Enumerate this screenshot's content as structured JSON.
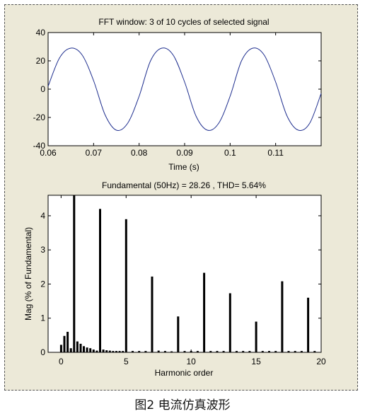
{
  "caption": "图2 电流仿真波形",
  "colors": {
    "panel_background": "#ece9d8",
    "plot_background": "#ffffff",
    "waveform": "#1f2f8f",
    "bars": "#000000"
  },
  "chart_data": [
    {
      "type": "line",
      "title": "FFT window: 3 of 10 cycles of selected signal",
      "xlabel": "Time (s)",
      "ylabel": "",
      "xlim": [
        0.06,
        0.12
      ],
      "ylim": [
        -40,
        40
      ],
      "x_ticks": [
        "0.06",
        "0.07",
        "0.08",
        "0.09",
        "0.1",
        "0.11"
      ],
      "y_ticks": [
        "40",
        "20",
        "0",
        "-20",
        "-40"
      ],
      "series": [
        {
          "frequency_hz": 50,
          "fundamental_amplitude": 28.26,
          "thd_percent": 5.64,
          "x": [
            0.06,
            0.0625,
            0.065,
            0.0675,
            0.07,
            0.0725,
            0.075,
            0.0775,
            0.08,
            0.0825,
            0.085,
            0.0875,
            0.09,
            0.0925,
            0.095,
            0.0975,
            0.1,
            0.1025,
            0.105,
            0.1075,
            0.11,
            0.1125,
            0.115,
            0.1175,
            0.12
          ],
          "y": [
            2,
            22,
            29,
            24,
            6,
            -18,
            -29,
            -24,
            -5,
            20,
            29,
            24,
            5,
            -19,
            -29,
            -24,
            -5,
            20,
            29,
            24,
            5,
            -19,
            -29,
            -24,
            -3
          ]
        }
      ]
    },
    {
      "type": "bar",
      "title": "Fundamental (50Hz) = 28.26 , THD= 5.64%",
      "xlabel": "Harmonic order",
      "ylabel": "Mag (% of Fundamental)",
      "xlim": [
        -1,
        20
      ],
      "ylim": [
        0,
        4.6
      ],
      "x_ticks": [
        "0",
        "5",
        "10",
        "15",
        "20"
      ],
      "y_ticks": [
        "0",
        "1",
        "2",
        "3",
        "4"
      ],
      "series": [
        {
          "x": [
            0,
            0.25,
            0.5,
            0.75,
            1,
            1.25,
            1.5,
            1.75,
            2,
            2.25,
            2.5,
            2.75,
            3,
            3.25,
            3.5,
            3.75,
            4,
            4.25,
            4.5,
            4.75,
            5,
            5.5,
            6,
            6.5,
            7,
            7.5,
            8,
            8.5,
            9,
            9.5,
            10,
            10.5,
            11,
            11.5,
            12,
            12.5,
            13,
            13.5,
            14,
            14.5,
            15,
            15.5,
            16,
            16.5,
            17,
            17.5,
            18,
            18.5,
            19,
            19.5
          ],
          "values": [
            0.22,
            0.48,
            0.6,
            0.12,
            4.6,
            0.32,
            0.25,
            0.18,
            0.14,
            0.12,
            0.08,
            0.05,
            4.2,
            0.08,
            0.06,
            0.05,
            0.04,
            0.04,
            0.04,
            0.04,
            3.9,
            0.04,
            0.04,
            0.04,
            2.22,
            0.05,
            0.04,
            0.03,
            1.05,
            0.04,
            0.04,
            0.04,
            2.33,
            0.04,
            0.04,
            0.04,
            1.73,
            0.04,
            0.04,
            0.04,
            0.9,
            0.04,
            0.04,
            0.04,
            2.08,
            0.04,
            0.04,
            0.04,
            1.6,
            0.04
          ]
        }
      ]
    }
  ]
}
